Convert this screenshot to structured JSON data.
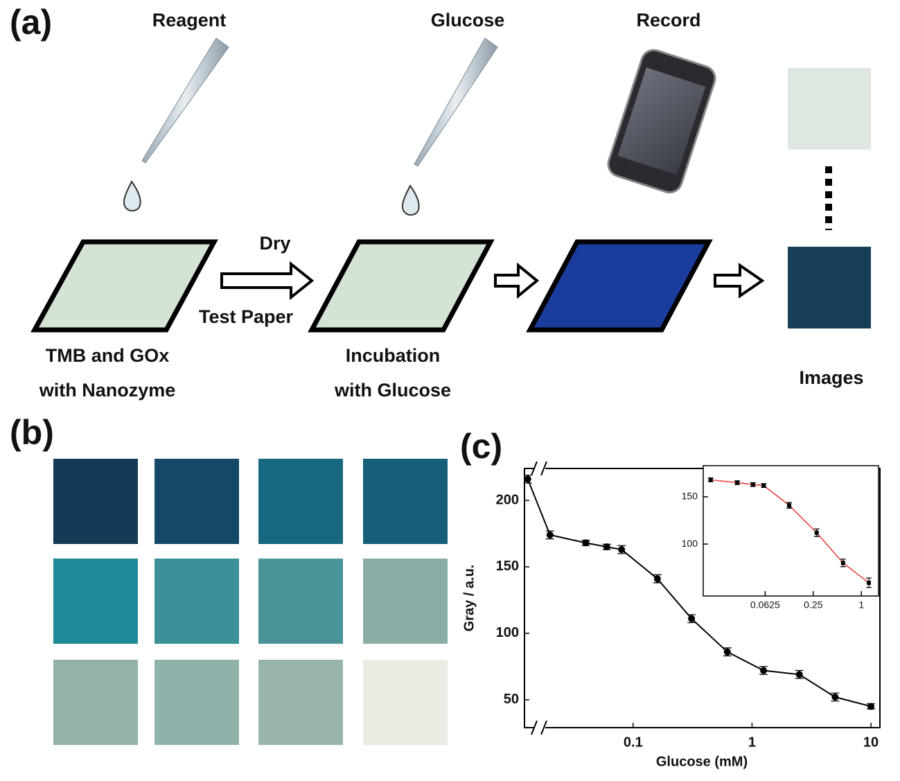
{
  "panel_a": {
    "label": "(a)",
    "reagent": "Reagent",
    "glucose": "Glucose",
    "record": "Record",
    "dry": "Dry",
    "test_paper": "Test Paper",
    "step1": [
      "TMB and GOx",
      "with Nanozyme"
    ],
    "step2": [
      "Incubation",
      "with Glucose"
    ],
    "images": "Images"
  },
  "panel_b": {
    "label": "(b)"
  },
  "panel_c": {
    "label": "(c)"
  },
  "chart_data": [
    {
      "type": "line",
      "x_label": "Glucose (mM)",
      "y_label": "Gray / a.u.",
      "x_scale": "log",
      "x": [
        0.013,
        0.02,
        0.04,
        0.06,
        0.08,
        0.16,
        0.31,
        0.62,
        1.25,
        2.5,
        5,
        10
      ],
      "series": [
        {
          "color": "#000000",
          "values": [
            216,
            174,
            168,
            165,
            163,
            141,
            111,
            86,
            72,
            69,
            52,
            45
          ],
          "errors": [
            3,
            3,
            2,
            2,
            3,
            3,
            3,
            3,
            3,
            3,
            3,
            2
          ]
        }
      ],
      "xlim": [
        0.0122,
        11.9
      ],
      "ylim": [
        29,
        224
      ],
      "xticks": [
        0.1,
        1,
        10
      ],
      "yticks": [
        50,
        100,
        150,
        200
      ]
    },
    {
      "type": "line",
      "x_scale": "log",
      "x": [
        0.013,
        0.028,
        0.044,
        0.06,
        0.125,
        0.276,
        0.59,
        1.24
      ],
      "series": [
        {
          "color": "#e53935",
          "marker_color": "#000000",
          "values": [
            168,
            165,
            163,
            162,
            141,
            112,
            80,
            59
          ],
          "errors": [
            2,
            2,
            2,
            2,
            3,
            4,
            4,
            5
          ]
        }
      ],
      "xlim": [
        0.0105,
        1.64
      ],
      "ylim": [
        45,
        183
      ],
      "xticks": [
        0.0625,
        0.25,
        1
      ],
      "yticks": [
        100,
        150
      ]
    }
  ]
}
